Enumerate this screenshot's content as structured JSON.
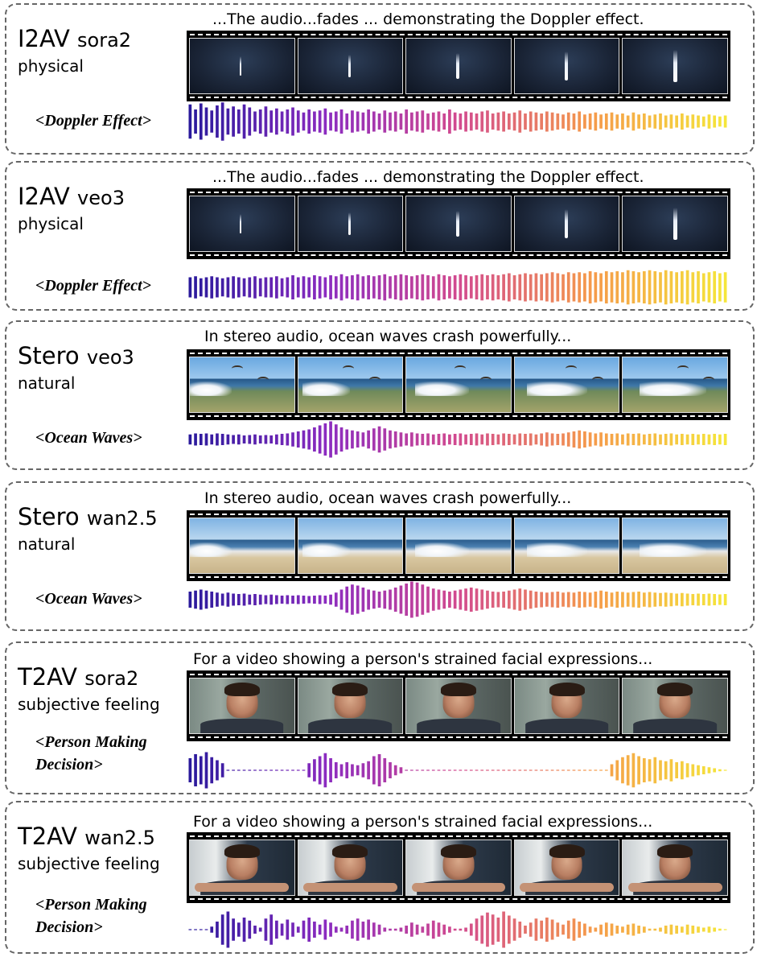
{
  "panels": [
    {
      "mode": "I2AV",
      "model": "sora2",
      "category": "physical",
      "tag": "<Doppler Effect>",
      "caption": "...The audio...fades ... demonstrating the Doppler effect.",
      "scene": "night",
      "wave_colors": [
        "#2a1a9c",
        "#8a2bc0",
        "#d24a8f",
        "#f59a4a",
        "#f5e63a"
      ],
      "waveform": [
        0.85,
        0.6,
        0.9,
        0.7,
        0.55,
        0.8,
        0.95,
        0.65,
        0.75,
        0.6,
        0.85,
        0.7,
        0.5,
        0.6,
        0.75,
        0.55,
        0.65,
        0.5,
        0.6,
        0.7,
        0.55,
        0.45,
        0.6,
        0.5,
        0.55,
        0.65,
        0.45,
        0.5,
        0.6,
        0.4,
        0.55,
        0.5,
        0.45,
        0.6,
        0.5,
        0.4,
        0.55,
        0.45,
        0.5,
        0.4,
        0.6,
        0.45,
        0.5,
        0.55,
        0.4,
        0.45,
        0.5,
        0.4,
        0.6,
        0.45,
        0.4,
        0.5,
        0.45,
        0.4,
        0.5,
        0.55,
        0.4,
        0.45,
        0.5,
        0.4,
        0.45,
        0.55,
        0.4,
        0.5,
        0.45,
        0.4,
        0.5,
        0.45,
        0.4,
        0.35,
        0.45,
        0.4,
        0.5,
        0.35,
        0.4,
        0.45,
        0.35,
        0.4,
        0.45,
        0.35,
        0.4,
        0.3,
        0.45,
        0.35,
        0.4,
        0.3,
        0.35,
        0.4,
        0.3,
        0.35,
        0.3,
        0.4,
        0.3,
        0.35,
        0.3,
        0.25,
        0.35,
        0.3,
        0.25,
        0.3
      ]
    },
    {
      "mode": "I2AV",
      "model": "veo3",
      "category": "physical",
      "tag": "<Doppler Effect>",
      "caption": "...The audio...fades ... demonstrating the Doppler effect.",
      "scene": "night",
      "wave_colors": [
        "#2a1a9c",
        "#8a2bc0",
        "#d24a8f",
        "#f59a4a",
        "#f5e63a"
      ],
      "waveform": [
        0.5,
        0.55,
        0.45,
        0.5,
        0.55,
        0.5,
        0.45,
        0.5,
        0.55,
        0.5,
        0.45,
        0.5,
        0.55,
        0.45,
        0.5,
        0.5,
        0.55,
        0.45,
        0.5,
        0.6,
        0.5,
        0.55,
        0.5,
        0.6,
        0.55,
        0.5,
        0.6,
        0.55,
        0.65,
        0.55,
        0.6,
        0.65,
        0.55,
        0.6,
        0.55,
        0.6,
        0.65,
        0.55,
        0.6,
        0.65,
        0.6,
        0.55,
        0.6,
        0.65,
        0.6,
        0.55,
        0.65,
        0.6,
        0.55,
        0.6,
        0.65,
        0.6,
        0.55,
        0.6,
        0.65,
        0.6,
        0.65,
        0.6,
        0.65,
        0.7,
        0.6,
        0.65,
        0.7,
        0.65,
        0.7,
        0.65,
        0.7,
        0.75,
        0.7,
        0.65,
        0.75,
        0.7,
        0.75,
        0.7,
        0.8,
        0.75,
        0.7,
        0.8,
        0.75,
        0.8,
        0.75,
        0.85,
        0.8,
        0.75,
        0.8,
        0.85,
        0.8,
        0.75,
        0.85,
        0.8,
        0.75,
        0.8,
        0.85,
        0.75,
        0.8,
        0.7,
        0.75,
        0.8,
        0.7,
        0.75
      ]
    },
    {
      "mode": "Stero",
      "model": "veo3",
      "category": "natural",
      "tag": "<Ocean Waves>",
      "caption": "In stereo audio, ocean waves crash powerfully...",
      "scene": "beach",
      "wave_colors": [
        "#2a1a9c",
        "#8a2bc0",
        "#d24a8f",
        "#f59a4a",
        "#f5e63a"
      ],
      "waveform": [
        0.25,
        0.3,
        0.28,
        0.3,
        0.25,
        0.3,
        0.28,
        0.25,
        0.22,
        0.25,
        0.2,
        0.22,
        0.25,
        0.2,
        0.22,
        0.2,
        0.25,
        0.28,
        0.3,
        0.35,
        0.4,
        0.45,
        0.5,
        0.6,
        0.7,
        0.8,
        0.9,
        0.75,
        0.6,
        0.5,
        0.45,
        0.4,
        0.35,
        0.45,
        0.55,
        0.65,
        0.55,
        0.45,
        0.4,
        0.35,
        0.3,
        0.35,
        0.3,
        0.28,
        0.3,
        0.25,
        0.28,
        0.3,
        0.25,
        0.28,
        0.3,
        0.25,
        0.28,
        0.3,
        0.25,
        0.3,
        0.28,
        0.25,
        0.3,
        0.28,
        0.25,
        0.3,
        0.28,
        0.3,
        0.25,
        0.3,
        0.35,
        0.3,
        0.28,
        0.3,
        0.35,
        0.4,
        0.45,
        0.4,
        0.35,
        0.3,
        0.35,
        0.3,
        0.28,
        0.3,
        0.25,
        0.3,
        0.28,
        0.3,
        0.25,
        0.28,
        0.3,
        0.25,
        0.28,
        0.3,
        0.25,
        0.28,
        0.25,
        0.28,
        0.25,
        0.28,
        0.25,
        0.28,
        0.25,
        0.28
      ]
    },
    {
      "mode": "Stero",
      "model": "wan2.5",
      "category": "natural",
      "tag": "<Ocean Waves>",
      "caption": "In stereo audio, ocean waves crash powerfully...",
      "scene": "beach2",
      "wave_colors": [
        "#2a1a9c",
        "#8a2bc0",
        "#d24a8f",
        "#f59a4a",
        "#f5e63a"
      ],
      "waveform": [
        0.4,
        0.45,
        0.5,
        0.45,
        0.4,
        0.35,
        0.3,
        0.35,
        0.3,
        0.28,
        0.3,
        0.25,
        0.28,
        0.25,
        0.22,
        0.25,
        0.22,
        0.2,
        0.22,
        0.2,
        0.22,
        0.2,
        0.18,
        0.2,
        0.22,
        0.2,
        0.25,
        0.35,
        0.5,
        0.65,
        0.75,
        0.7,
        0.6,
        0.5,
        0.45,
        0.4,
        0.45,
        0.5,
        0.6,
        0.7,
        0.8,
        0.9,
        0.85,
        0.75,
        0.65,
        0.55,
        0.5,
        0.45,
        0.4,
        0.45,
        0.5,
        0.55,
        0.6,
        0.55,
        0.5,
        0.45,
        0.4,
        0.38,
        0.4,
        0.45,
        0.5,
        0.55,
        0.5,
        0.45,
        0.4,
        0.38,
        0.35,
        0.38,
        0.4,
        0.35,
        0.38,
        0.35,
        0.4,
        0.38,
        0.35,
        0.4,
        0.45,
        0.4,
        0.35,
        0.4,
        0.38,
        0.35,
        0.38,
        0.4,
        0.35,
        0.38,
        0.35,
        0.33,
        0.35,
        0.33,
        0.3,
        0.33,
        0.3,
        0.28,
        0.3,
        0.28,
        0.3,
        0.28,
        0.26,
        0.28
      ]
    },
    {
      "mode": "T2AV",
      "model": "sora2",
      "category": "subjective feeling",
      "tag": "<Person Making Decision>",
      "caption": "For a video showing a person's strained facial expressions...",
      "scene": "room1",
      "wave_colors": [
        "#2a1a9c",
        "#8a2bc0",
        "#d24a8f",
        "#f59a4a",
        "#f5e63a"
      ],
      "waveform": [
        0.6,
        0.8,
        0.7,
        0.9,
        0.65,
        0.5,
        0.35,
        0.02,
        0.02,
        0.02,
        0.02,
        0.02,
        0.02,
        0.02,
        0.02,
        0.02,
        0.02,
        0.02,
        0.02,
        0.02,
        0.02,
        0.02,
        0.35,
        0.55,
        0.7,
        0.85,
        0.6,
        0.4,
        0.3,
        0.4,
        0.3,
        0.25,
        0.35,
        0.45,
        0.7,
        0.8,
        0.6,
        0.4,
        0.25,
        0.15,
        0.02,
        0.02,
        0.02,
        0.02,
        0.02,
        0.02,
        0.02,
        0.02,
        0.02,
        0.02,
        0.02,
        0.02,
        0.02,
        0.02,
        0.02,
        0.02,
        0.02,
        0.02,
        0.02,
        0.02,
        0.02,
        0.02,
        0.02,
        0.02,
        0.02,
        0.02,
        0.02,
        0.02,
        0.02,
        0.02,
        0.02,
        0.02,
        0.02,
        0.02,
        0.02,
        0.02,
        0.02,
        0.02,
        0.3,
        0.5,
        0.65,
        0.75,
        0.85,
        0.7,
        0.6,
        0.55,
        0.65,
        0.5,
        0.45,
        0.55,
        0.4,
        0.45,
        0.35,
        0.3,
        0.25,
        0.2,
        0.15,
        0.1,
        0.05,
        0.02
      ]
    },
    {
      "mode": "T2AV",
      "model": "wan2.5",
      "category": "subjective feeling",
      "tag": "<Person Making Decision>",
      "caption": "For a video showing a person's strained facial expressions...",
      "scene": "room2",
      "wave_colors": [
        "#2a1a9c",
        "#8a2bc0",
        "#d24a8f",
        "#f59a4a",
        "#f5e63a"
      ],
      "waveform": [
        0.02,
        0.02,
        0.02,
        0.02,
        0.15,
        0.4,
        0.75,
        0.9,
        0.55,
        0.35,
        0.6,
        0.45,
        0.2,
        0.1,
        0.55,
        0.75,
        0.45,
        0.3,
        0.5,
        0.35,
        0.15,
        0.45,
        0.6,
        0.4,
        0.25,
        0.5,
        0.35,
        0.15,
        0.1,
        0.2,
        0.45,
        0.55,
        0.4,
        0.5,
        0.35,
        0.25,
        0.1,
        0.05,
        0.05,
        0.1,
        0.2,
        0.35,
        0.25,
        0.15,
        0.3,
        0.45,
        0.35,
        0.25,
        0.15,
        0.05,
        0.05,
        0.1,
        0.3,
        0.55,
        0.7,
        0.85,
        0.75,
        0.6,
        0.9,
        0.7,
        0.55,
        0.4,
        0.2,
        0.35,
        0.55,
        0.45,
        0.6,
        0.5,
        0.35,
        0.25,
        0.45,
        0.55,
        0.4,
        0.3,
        0.15,
        0.1,
        0.25,
        0.35,
        0.3,
        0.2,
        0.15,
        0.25,
        0.3,
        0.2,
        0.15,
        0.05,
        0.05,
        0.1,
        0.2,
        0.25,
        0.2,
        0.15,
        0.25,
        0.2,
        0.15,
        0.1,
        0.15,
        0.1,
        0.05,
        0.02
      ]
    }
  ]
}
